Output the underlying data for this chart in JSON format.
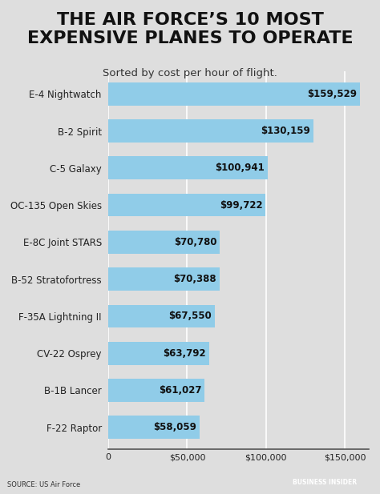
{
  "title": "THE AIR FORCE’S 10 MOST\nEXPENSIVE PLANES TO OPERATE",
  "subtitle": "Sorted by cost per hour of flight.",
  "categories": [
    "F-22 Raptor",
    "B-1B Lancer",
    "CV-22 Osprey",
    "F-35A Lightning II",
    "B-52 Stratofortress",
    "E-8C Joint STARS",
    "OC-135 Open Skies",
    "C-5 Galaxy",
    "B-2 Spirit",
    "E-4 Nightwatch"
  ],
  "values": [
    58059,
    61027,
    63792,
    67550,
    70388,
    70780,
    99722,
    100941,
    130159,
    159529
  ],
  "bar_color": "#90cce8",
  "bg_color": "#dedede",
  "plot_bg_color": "#dedede",
  "title_color": "#111111",
  "subtitle_color": "#333333",
  "label_color": "#222222",
  "value_color": "#111111",
  "xlim": [
    0,
    165000
  ],
  "xticks": [
    0,
    50000,
    100000,
    150000
  ],
  "source_text": "SOURCE: US Air Force",
  "footer_text": "BUSINESS INSIDER",
  "bar_height": 0.62,
  "title_fontsize": 16,
  "subtitle_fontsize": 9.5,
  "tick_fontsize": 8,
  "label_fontsize": 8.5,
  "value_fontsize": 8.5,
  "footer_bg_color": "#1c3a5e",
  "footer_text_color": "#ffffff"
}
